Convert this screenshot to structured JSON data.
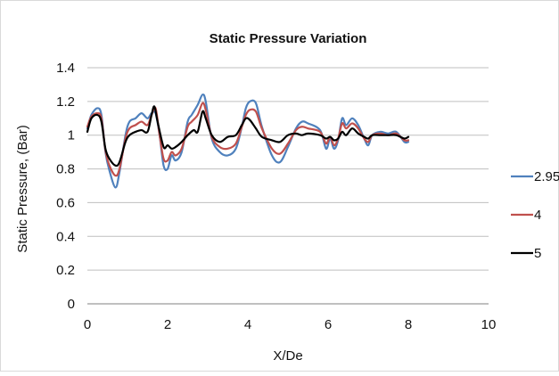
{
  "chart_data": {
    "type": "line",
    "title": "Static Pressure Variation",
    "xlabel": "X/De",
    "ylabel": "Static Pressure, (Bar)",
    "xlim": [
      0,
      10
    ],
    "ylim": [
      0,
      1.4
    ],
    "x_ticks": [
      "0",
      "2",
      "4",
      "6",
      "8",
      "10"
    ],
    "y_ticks": [
      "0",
      "0.2",
      "0.4",
      "0.6",
      "0.8",
      "1",
      "1.2",
      "1.4"
    ],
    "grid": "horizontal",
    "legend_position": "right",
    "series": [
      {
        "name": "2.95",
        "color": "#4f81bd",
        "points": [
          [
            0,
            1.04
          ],
          [
            0.1,
            1.12
          ],
          [
            0.25,
            1.16
          ],
          [
            0.35,
            1.12
          ],
          [
            0.45,
            0.9
          ],
          [
            0.55,
            0.79
          ],
          [
            0.7,
            0.69
          ],
          [
            0.8,
            0.78
          ],
          [
            0.95,
            1.0
          ],
          [
            1.05,
            1.08
          ],
          [
            1.2,
            1.1
          ],
          [
            1.35,
            1.13
          ],
          [
            1.5,
            1.1
          ],
          [
            1.6,
            1.13
          ],
          [
            1.7,
            1.13
          ],
          [
            1.8,
            1.0
          ],
          [
            1.9,
            0.82
          ],
          [
            2.0,
            0.8
          ],
          [
            2.1,
            0.88
          ],
          [
            2.2,
            0.85
          ],
          [
            2.35,
            0.9
          ],
          [
            2.5,
            1.08
          ],
          [
            2.6,
            1.12
          ],
          [
            2.75,
            1.18
          ],
          [
            2.87,
            1.24
          ],
          [
            2.95,
            1.2
          ],
          [
            3.1,
            0.98
          ],
          [
            3.3,
            0.9
          ],
          [
            3.5,
            0.88
          ],
          [
            3.7,
            0.92
          ],
          [
            3.85,
            1.05
          ],
          [
            3.95,
            1.16
          ],
          [
            4.05,
            1.2
          ],
          [
            4.2,
            1.19
          ],
          [
            4.35,
            1.05
          ],
          [
            4.6,
            0.88
          ],
          [
            4.8,
            0.84
          ],
          [
            5.0,
            0.93
          ],
          [
            5.2,
            1.04
          ],
          [
            5.35,
            1.08
          ],
          [
            5.5,
            1.07
          ],
          [
            5.8,
            1.03
          ],
          [
            5.95,
            0.92
          ],
          [
            6.05,
            0.98
          ],
          [
            6.15,
            0.92
          ],
          [
            6.25,
            0.97
          ],
          [
            6.35,
            1.1
          ],
          [
            6.45,
            1.06
          ],
          [
            6.6,
            1.1
          ],
          [
            6.75,
            1.06
          ],
          [
            6.9,
            0.98
          ],
          [
            7.0,
            0.94
          ],
          [
            7.1,
            1.0
          ],
          [
            7.3,
            1.02
          ],
          [
            7.5,
            1.01
          ],
          [
            7.7,
            1.02
          ],
          [
            7.9,
            0.96
          ],
          [
            8.0,
            0.96
          ]
        ]
      },
      {
        "name": "4",
        "color": "#c0504d",
        "points": [
          [
            0,
            1.05
          ],
          [
            0.1,
            1.11
          ],
          [
            0.25,
            1.13
          ],
          [
            0.35,
            1.1
          ],
          [
            0.45,
            0.91
          ],
          [
            0.55,
            0.82
          ],
          [
            0.7,
            0.76
          ],
          [
            0.8,
            0.8
          ],
          [
            0.95,
            0.98
          ],
          [
            1.05,
            1.04
          ],
          [
            1.2,
            1.06
          ],
          [
            1.35,
            1.08
          ],
          [
            1.5,
            1.06
          ],
          [
            1.6,
            1.12
          ],
          [
            1.7,
            1.16
          ],
          [
            1.8,
            1.0
          ],
          [
            1.9,
            0.86
          ],
          [
            2.0,
            0.85
          ],
          [
            2.1,
            0.9
          ],
          [
            2.2,
            0.88
          ],
          [
            2.35,
            0.92
          ],
          [
            2.5,
            1.05
          ],
          [
            2.6,
            1.08
          ],
          [
            2.75,
            1.12
          ],
          [
            2.87,
            1.19
          ],
          [
            2.95,
            1.15
          ],
          [
            3.1,
            0.99
          ],
          [
            3.3,
            0.93
          ],
          [
            3.5,
            0.92
          ],
          [
            3.7,
            0.95
          ],
          [
            3.85,
            1.05
          ],
          [
            3.95,
            1.12
          ],
          [
            4.05,
            1.15
          ],
          [
            4.2,
            1.14
          ],
          [
            4.35,
            1.04
          ],
          [
            4.6,
            0.92
          ],
          [
            4.8,
            0.89
          ],
          [
            5.0,
            0.95
          ],
          [
            5.2,
            1.03
          ],
          [
            5.35,
            1.05
          ],
          [
            5.5,
            1.04
          ],
          [
            5.8,
            1.02
          ],
          [
            5.95,
            0.95
          ],
          [
            6.05,
            0.99
          ],
          [
            6.15,
            0.94
          ],
          [
            6.25,
            0.98
          ],
          [
            6.35,
            1.07
          ],
          [
            6.45,
            1.04
          ],
          [
            6.6,
            1.07
          ],
          [
            6.75,
            1.04
          ],
          [
            6.9,
            0.98
          ],
          [
            7.0,
            0.96
          ],
          [
            7.1,
            1.0
          ],
          [
            7.3,
            1.01
          ],
          [
            7.5,
            1.0
          ],
          [
            7.7,
            1.01
          ],
          [
            7.9,
            0.97
          ],
          [
            8.0,
            0.97
          ]
        ]
      },
      {
        "name": "5",
        "color": "#000000",
        "points": [
          [
            0,
            1.02
          ],
          [
            0.1,
            1.1
          ],
          [
            0.25,
            1.12
          ],
          [
            0.35,
            1.08
          ],
          [
            0.45,
            0.92
          ],
          [
            0.55,
            0.86
          ],
          [
            0.7,
            0.82
          ],
          [
            0.8,
            0.84
          ],
          [
            0.95,
            0.96
          ],
          [
            1.05,
            1.0
          ],
          [
            1.2,
            1.02
          ],
          [
            1.35,
            1.03
          ],
          [
            1.5,
            1.02
          ],
          [
            1.6,
            1.12
          ],
          [
            1.67,
            1.17
          ],
          [
            1.75,
            1.08
          ],
          [
            1.9,
            0.93
          ],
          [
            2.0,
            0.94
          ],
          [
            2.1,
            0.92
          ],
          [
            2.2,
            0.93
          ],
          [
            2.35,
            0.96
          ],
          [
            2.5,
            1.0
          ],
          [
            2.65,
            1.03
          ],
          [
            2.75,
            1.02
          ],
          [
            2.87,
            1.14
          ],
          [
            2.95,
            1.1
          ],
          [
            3.1,
            1.0
          ],
          [
            3.3,
            0.96
          ],
          [
            3.5,
            0.99
          ],
          [
            3.7,
            1.0
          ],
          [
            3.85,
            1.06
          ],
          [
            3.95,
            1.1
          ],
          [
            4.05,
            1.09
          ],
          [
            4.2,
            1.04
          ],
          [
            4.35,
            0.99
          ],
          [
            4.6,
            0.97
          ],
          [
            4.8,
            0.96
          ],
          [
            5.0,
            1.0
          ],
          [
            5.2,
            1.01
          ],
          [
            5.35,
            1.0
          ],
          [
            5.5,
            1.01
          ],
          [
            5.8,
            1.0
          ],
          [
            5.95,
            0.98
          ],
          [
            6.05,
            0.99
          ],
          [
            6.15,
            0.97
          ],
          [
            6.25,
            0.98
          ],
          [
            6.35,
            1.02
          ],
          [
            6.45,
            1.0
          ],
          [
            6.6,
            1.04
          ],
          [
            6.75,
            1.01
          ],
          [
            6.9,
            0.99
          ],
          [
            7.0,
            0.98
          ],
          [
            7.1,
            1.0
          ],
          [
            7.3,
            1.0
          ],
          [
            7.5,
            1.0
          ],
          [
            7.7,
            1.0
          ],
          [
            7.9,
            0.98
          ],
          [
            8.0,
            0.99
          ]
        ]
      }
    ]
  }
}
